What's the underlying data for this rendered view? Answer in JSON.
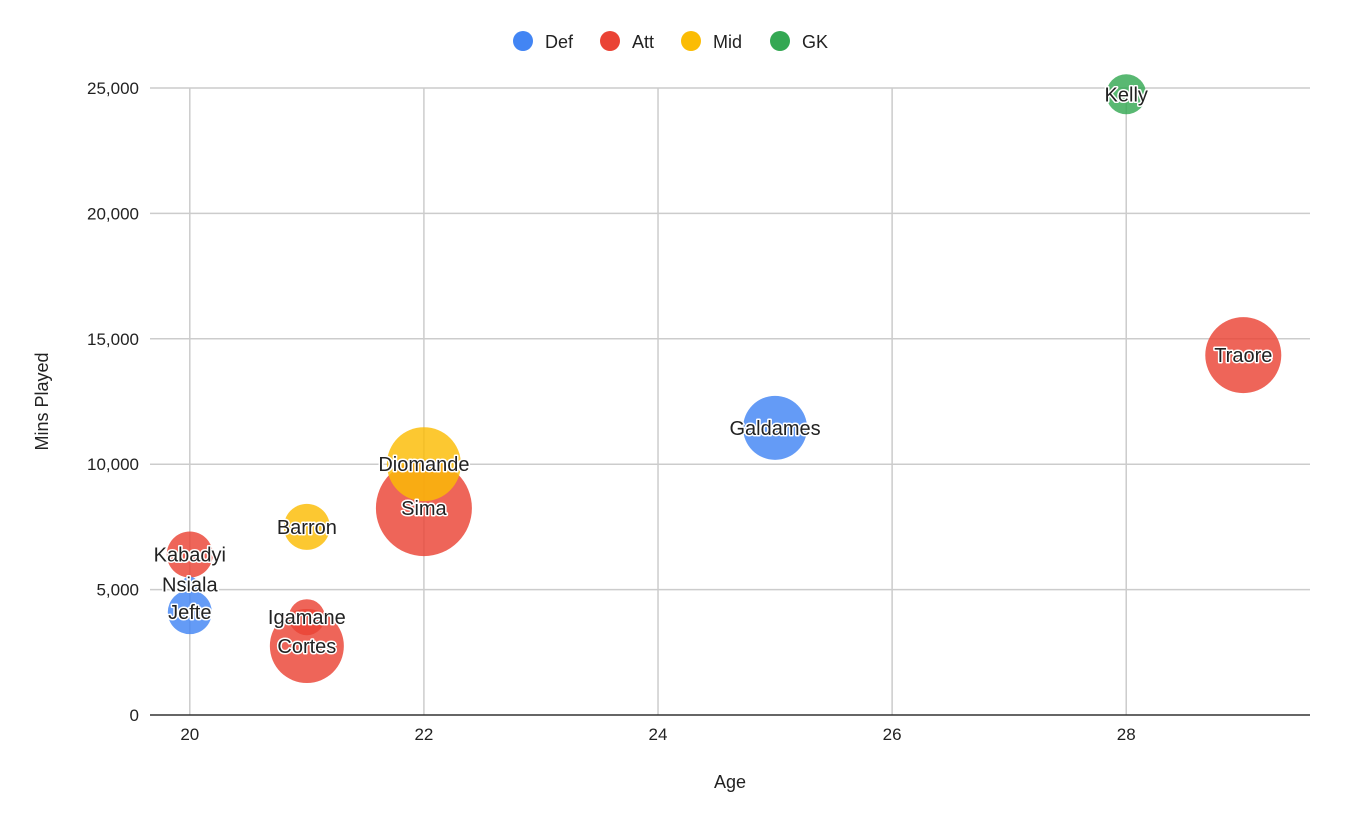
{
  "chart_data": {
    "type": "scatter",
    "subtype": "bubble",
    "title": "",
    "xlabel": "Age",
    "ylabel": "Mins Played",
    "xlim": [
      19.66,
      29.57
    ],
    "ylim": [
      0,
      25000
    ],
    "xticks": [
      20,
      22,
      24,
      26,
      28
    ],
    "yticks": [
      0,
      5000,
      10000,
      15000,
      20000,
      25000
    ],
    "ytick_labels": [
      "0",
      "5,000",
      "10,000",
      "15,000",
      "20,000",
      "25,000"
    ],
    "grid": true,
    "legend_position": "top",
    "categories": [
      {
        "name": "Def",
        "color": "#4285F4"
      },
      {
        "name": "Att",
        "color": "#EA4335"
      },
      {
        "name": "Mid",
        "color": "#FBBC04"
      },
      {
        "name": "GK",
        "color": "#34A853"
      }
    ],
    "points": [
      {
        "label": "Sima",
        "category": "Att",
        "x": 22,
        "y": 8250,
        "size": 48
      },
      {
        "label": "Diomande",
        "category": "Mid",
        "x": 22,
        "y": 10000,
        "size": 37
      },
      {
        "label": "Traore",
        "category": "Att",
        "x": 29,
        "y": 14350,
        "size": 38
      },
      {
        "label": "Cortes",
        "category": "Att",
        "x": 21,
        "y": 2750,
        "size": 37
      },
      {
        "label": "Galdames",
        "category": "Def",
        "x": 25,
        "y": 11450,
        "size": 32
      },
      {
        "label": "Kabadyi",
        "category": "Att",
        "x": 20,
        "y": 6400,
        "size": 23
      },
      {
        "label": "Barron",
        "category": "Mid",
        "x": 21,
        "y": 7500,
        "size": 23
      },
      {
        "label": "Jefte",
        "category": "Def",
        "x": 20,
        "y": 4100,
        "size": 22
      },
      {
        "label": "Igamane",
        "category": "Att",
        "x": 21,
        "y": 3900,
        "size": 18
      },
      {
        "label": "Kelly",
        "category": "GK",
        "x": 28,
        "y": 24750,
        "size": 20
      },
      {
        "label": "Nsiala",
        "category": "Def",
        "x": 20,
        "y": 5200,
        "size": 8
      }
    ]
  }
}
